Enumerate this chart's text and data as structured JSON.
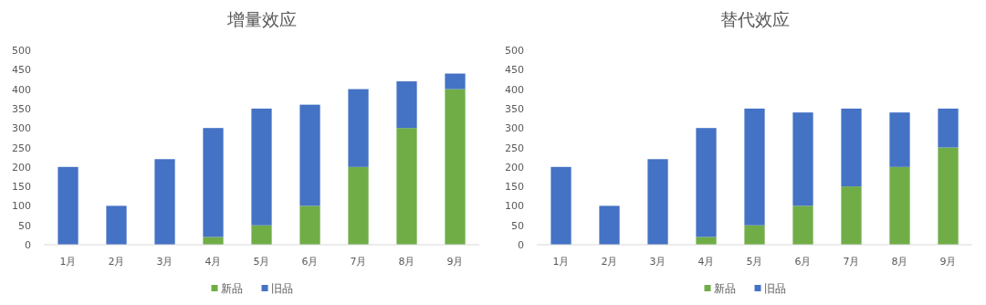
{
  "chart_data": [
    {
      "type": "bar",
      "title": "增量效应",
      "categories": [
        "1月",
        "2月",
        "3月",
        "4月",
        "5月",
        "6月",
        "7月",
        "8月",
        "9月"
      ],
      "stacked": true,
      "ylim": [
        0,
        500
      ],
      "yticks": [
        0,
        50,
        100,
        150,
        200,
        250,
        300,
        350,
        400,
        450,
        500
      ],
      "legend": "bottom",
      "series": [
        {
          "name": "新品",
          "color": "#70ad47",
          "values": [
            0,
            0,
            0,
            20,
            50,
            100,
            200,
            300,
            400
          ]
        },
        {
          "name": "旧品",
          "color": "#4472c4",
          "values": [
            200,
            100,
            220,
            280,
            300,
            260,
            200,
            120,
            40
          ]
        }
      ]
    },
    {
      "type": "bar",
      "title": "替代效应",
      "categories": [
        "1月",
        "2月",
        "3月",
        "4月",
        "5月",
        "6月",
        "7月",
        "8月",
        "9月"
      ],
      "stacked": true,
      "ylim": [
        0,
        500
      ],
      "yticks": [
        0,
        50,
        100,
        150,
        200,
        250,
        300,
        350,
        400,
        450,
        500
      ],
      "legend": "bottom",
      "series": [
        {
          "name": "新品",
          "color": "#70ad47",
          "values": [
            0,
            0,
            0,
            20,
            50,
            100,
            150,
            200,
            250
          ]
        },
        {
          "name": "旧品",
          "color": "#4472c4",
          "values": [
            200,
            100,
            220,
            280,
            300,
            240,
            200,
            140,
            100
          ]
        }
      ]
    }
  ]
}
